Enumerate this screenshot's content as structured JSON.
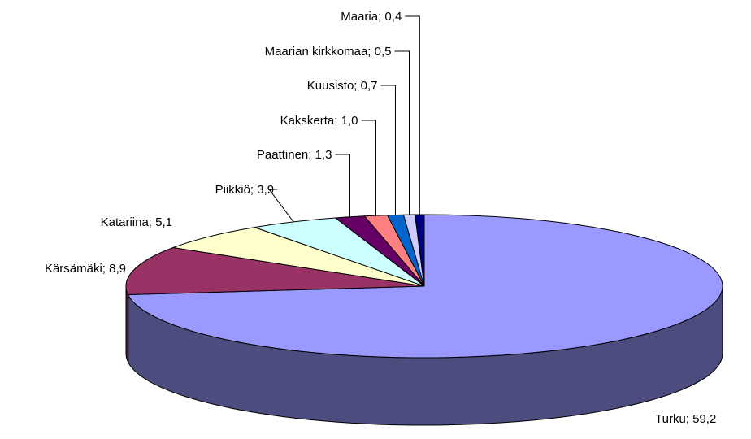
{
  "chart_data": {
    "type": "pie",
    "title": "",
    "three_d": true,
    "legend": "none",
    "labels_format": "category; value",
    "slices": [
      {
        "label": "Turku",
        "value_label": "59,2",
        "value": 59.2,
        "color": "#9999ff",
        "side_color": "#4c4c7f"
      },
      {
        "label": "Kärsämäki",
        "value_label": "8,9",
        "value": 8.9,
        "color": "#993366",
        "side_color": "#4c1933"
      },
      {
        "label": "Katariina",
        "value_label": "5,1",
        "value": 5.1,
        "color": "#ffffcc",
        "side_color": "#7f7f66"
      },
      {
        "label": "Piikkiö",
        "value_label": "3,9",
        "value": 3.9,
        "color": "#ccffff",
        "side_color": "#667f7f"
      },
      {
        "label": "Paattinen",
        "value_label": "1,3",
        "value": 1.3,
        "color": "#660066",
        "side_color": "#330033"
      },
      {
        "label": "Kakskerta",
        "value_label": "1,0",
        "value": 1.0,
        "color": "#ff8080",
        "side_color": "#7f4040"
      },
      {
        "label": "Kuusisto",
        "value_label": "0,7",
        "value": 0.7,
        "color": "#0066cc",
        "side_color": "#003366"
      },
      {
        "label": "Maarian kirkkomaa",
        "value_label": "0,5",
        "value": 0.5,
        "color": "#ccccff",
        "side_color": "#66667f"
      },
      {
        "label": "Maaria",
        "value_label": "0,4",
        "value": 0.4,
        "color": "#000080",
        "side_color": "#000040"
      }
    ]
  }
}
